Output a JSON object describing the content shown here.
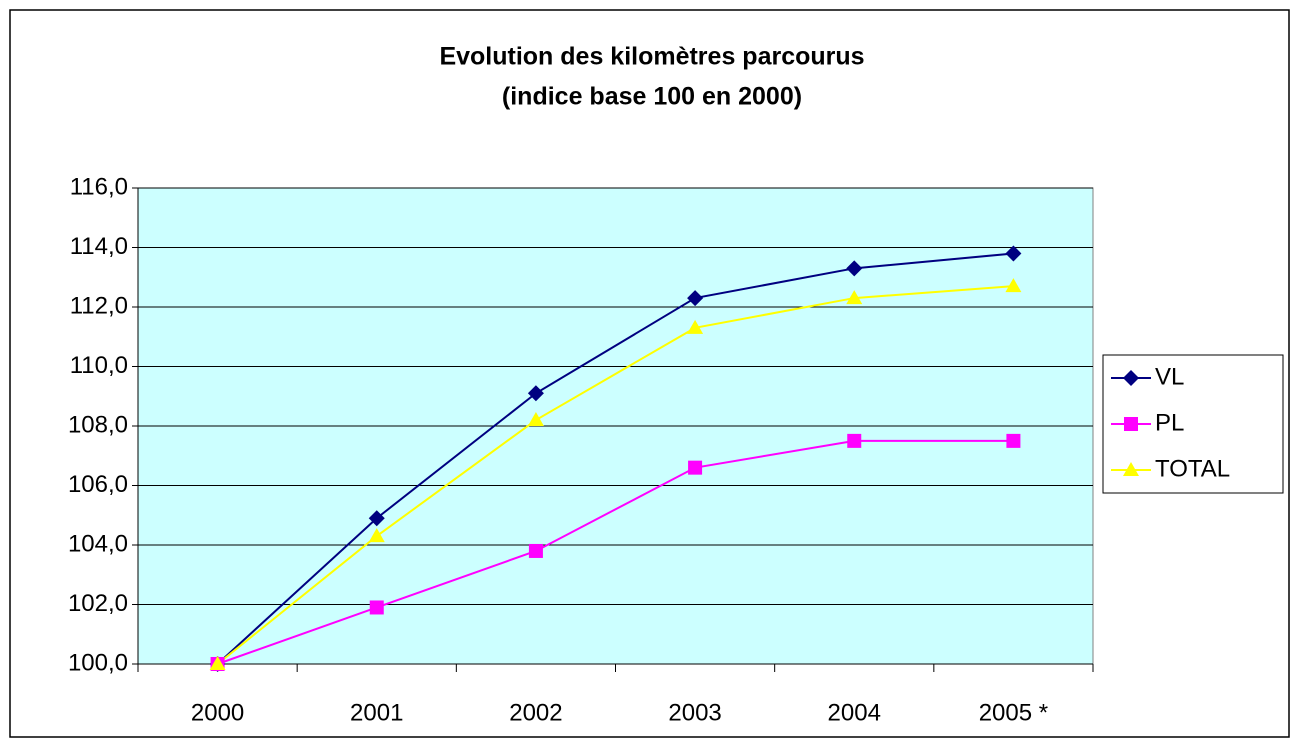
{
  "chart_data": {
    "type": "line",
    "title": [
      "Evolution des kilomètres parcourus",
      "(indice base 100 en 2000)"
    ],
    "categories": [
      "2000",
      "2001",
      "2002",
      "2003",
      "2004",
      "2005 *"
    ],
    "series": [
      {
        "name": "VL",
        "color": "#000080",
        "marker": "diamond",
        "values": [
          100.0,
          104.9,
          109.1,
          112.3,
          113.3,
          113.8
        ]
      },
      {
        "name": "PL",
        "color": "#ff00ff",
        "marker": "square",
        "values": [
          100.0,
          101.9,
          103.8,
          106.6,
          107.5,
          107.5
        ]
      },
      {
        "name": "TOTAL",
        "color": "#ffff00",
        "marker": "triangle",
        "values": [
          100.0,
          104.3,
          108.2,
          111.3,
          112.3,
          112.7
        ]
      }
    ],
    "ylim": [
      100,
      116
    ],
    "yticks": [
      {
        "value": 100,
        "label": "100,0"
      },
      {
        "value": 102,
        "label": "102,0"
      },
      {
        "value": 104,
        "label": "104,0"
      },
      {
        "value": 106,
        "label": "106,0"
      },
      {
        "value": 108,
        "label": "108,0"
      },
      {
        "value": 110,
        "label": "110,0"
      },
      {
        "value": 112,
        "label": "112,0"
      },
      {
        "value": 114,
        "label": "114,0"
      },
      {
        "value": 116,
        "label": "116,0"
      }
    ],
    "grid": true,
    "legend": "right",
    "plot_background": "#ccffff"
  }
}
